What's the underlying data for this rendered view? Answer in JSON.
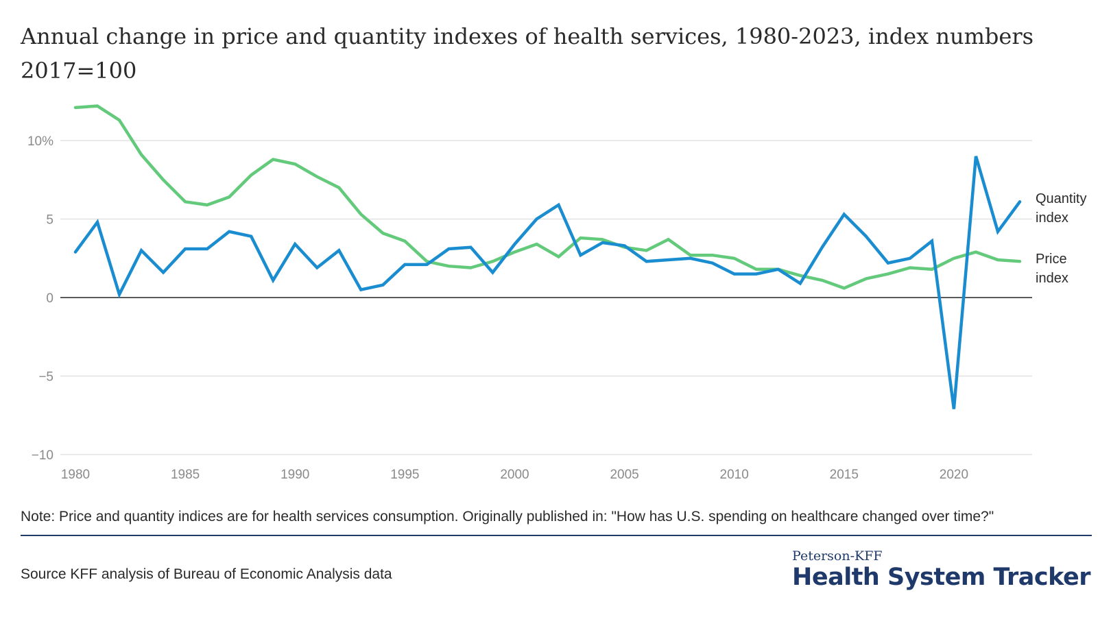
{
  "title": "Annual change in price and quantity indexes of health services, 1980-2023, index numbers 2017=100",
  "note": "Note: Price and quantity indices are for health services consumption. Originally published in: \"How has U.S. spending on healthcare changed over time?\"",
  "source": "Source KFF analysis of Bureau of Economic Analysis data",
  "brand": {
    "top": "Peterson-KFF",
    "main": "Health System Tracker",
    "color": "#1f3a6a"
  },
  "chart_data": {
    "type": "line",
    "title": "Annual change in price and quantity indexes of health services, 1980-2023, index numbers 2017=100",
    "xlabel": "",
    "ylabel": "",
    "xlim": [
      1980,
      2023
    ],
    "ylim": [
      -10,
      12
    ],
    "grid": true,
    "legend": "direct labels at right end of lines",
    "x": [
      1980,
      1981,
      1982,
      1983,
      1984,
      1985,
      1986,
      1987,
      1988,
      1989,
      1990,
      1991,
      1992,
      1993,
      1994,
      1995,
      1996,
      1997,
      1998,
      1999,
      2000,
      2001,
      2002,
      2003,
      2004,
      2005,
      2006,
      2007,
      2008,
      2009,
      2010,
      2011,
      2012,
      2013,
      2014,
      2015,
      2016,
      2017,
      2018,
      2019,
      2020,
      2021,
      2022,
      2023
    ],
    "x_ticks": [
      "1980",
      "1985",
      "1990",
      "1995",
      "2000",
      "2005",
      "2010",
      "2015",
      "2020"
    ],
    "y_ticks": [
      {
        "value": 10,
        "label": "10%"
      },
      {
        "value": 5,
        "label": "5"
      },
      {
        "value": 0,
        "label": "0"
      },
      {
        "value": -5,
        "label": "−5"
      },
      {
        "value": -10,
        "label": "−10"
      }
    ],
    "series": [
      {
        "name": "Quantity index",
        "label_lines": [
          "Quantity",
          "index"
        ],
        "color": "#1a8cd0",
        "values": [
          2.9,
          4.8,
          0.2,
          3.0,
          1.6,
          3.1,
          3.1,
          4.2,
          3.9,
          1.1,
          3.4,
          1.9,
          3.0,
          0.5,
          0.8,
          2.1,
          2.1,
          3.1,
          3.2,
          1.6,
          3.4,
          5.0,
          5.9,
          2.7,
          3.5,
          3.3,
          2.3,
          2.4,
          2.5,
          2.2,
          1.5,
          1.5,
          1.8,
          0.9,
          3.2,
          5.3,
          3.9,
          2.2,
          2.5,
          3.6,
          -7.1,
          9.0,
          4.2,
          6.1
        ]
      },
      {
        "name": "Price index",
        "label_lines": [
          "Price",
          "index"
        ],
        "color": "#63c97b",
        "values": [
          12.1,
          12.2,
          11.3,
          9.1,
          7.5,
          6.1,
          5.9,
          6.4,
          7.8,
          8.8,
          8.5,
          7.7,
          7.0,
          5.3,
          4.1,
          3.6,
          2.3,
          2.0,
          1.9,
          2.3,
          2.9,
          3.4,
          2.6,
          3.8,
          3.7,
          3.2,
          3.0,
          3.7,
          2.7,
          2.7,
          2.5,
          1.8,
          1.8,
          1.4,
          1.1,
          0.6,
          1.2,
          1.5,
          1.9,
          1.8,
          2.5,
          2.9,
          2.4,
          2.3
        ]
      }
    ]
  }
}
